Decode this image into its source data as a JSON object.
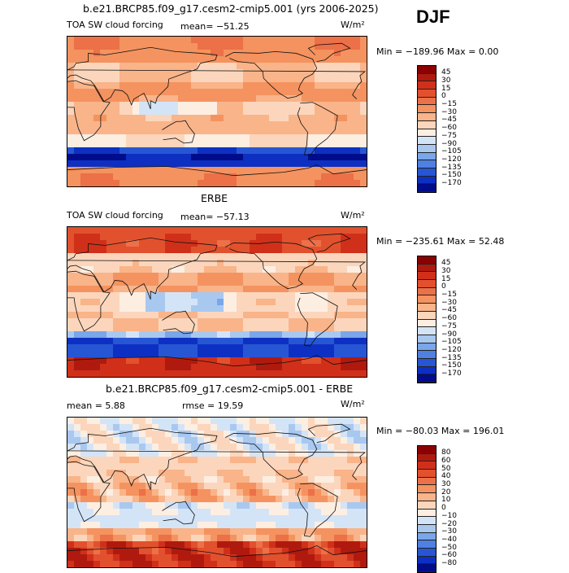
{
  "season": "DJF",
  "panels": [
    {
      "heading": "b.e21.BRCP85.f09_g17.cesm2-cmip5.001 (yrs 2006-2025)",
      "left_label": "TOA SW cloud forcing",
      "center_label": "mean= −51.25",
      "units": "W/m²",
      "minmax": "Min = −189.96 Max =    0.00"
    },
    {
      "heading": "ERBE",
      "left_label": "TOA SW cloud forcing",
      "center_label": "mean= −57.13",
      "units": "W/m²",
      "minmax": "Min = −235.61 Max =  52.48"
    },
    {
      "heading": "b.e21.BRCP85.f09_g17.cesm2-cmip5.001 - ERBE",
      "left_label": "mean =    5.88",
      "center_label": "rmse =   19.59",
      "units": "W/m²",
      "minmax": "Min = −80.03 Max = 196.01"
    }
  ],
  "chart_data": [
    {
      "type": "heatmap",
      "title": "b.e21.BRCP85.f09_g17.cesm2-cmip5.001 (yrs 2006-2025)",
      "variable": "TOA SW cloud forcing",
      "units": "W/m²",
      "mean": -51.25,
      "min": -189.96,
      "max": 0.0,
      "levels": [
        45,
        30,
        15,
        0,
        -15,
        -30,
        -45,
        -60,
        -75,
        -90,
        -105,
        -120,
        -135,
        -150,
        -170
      ],
      "level_labels": [
        "45",
        "30",
        "15",
        "0",
        "−15",
        "−30",
        "−45",
        "−60",
        "−75",
        "−90",
        "−105",
        "−120",
        "−135",
        "−150",
        "−170"
      ],
      "colors": [
        "#8b0000",
        "#b01a0e",
        "#d0301a",
        "#e2512e",
        "#ec7048",
        "#f4935f",
        "#f9b48a",
        "#fbd6bc",
        "#fdeee2",
        "#d4e4f7",
        "#a9c8f0",
        "#7aa6ea",
        "#4f80e2",
        "#2756d4",
        "#0d30c2",
        "#000c8a"
      ]
    },
    {
      "type": "heatmap",
      "title": "ERBE",
      "variable": "TOA SW cloud forcing",
      "units": "W/m²",
      "mean": -57.13,
      "min": -235.61,
      "max": 52.48,
      "levels": [
        45,
        30,
        15,
        0,
        -15,
        -30,
        -45,
        -60,
        -75,
        -90,
        -105,
        -120,
        -135,
        -150,
        -170
      ],
      "level_labels": [
        "45",
        "30",
        "15",
        "0",
        "−15",
        "−30",
        "−45",
        "−60",
        "−75",
        "−90",
        "−105",
        "−120",
        "−135",
        "−150",
        "−170"
      ],
      "colors": [
        "#8b0000",
        "#b01a0e",
        "#d0301a",
        "#e2512e",
        "#ec7048",
        "#f4935f",
        "#f9b48a",
        "#fbd6bc",
        "#fdeee2",
        "#d4e4f7",
        "#a9c8f0",
        "#7aa6ea",
        "#4f80e2",
        "#2756d4",
        "#0d30c2",
        "#000c8a"
      ]
    },
    {
      "type": "heatmap",
      "title": "b.e21.BRCP85.f09_g17.cesm2-cmip5.001 - ERBE",
      "units": "W/m²",
      "mean": 5.88,
      "rmse": 19.59,
      "min": -80.03,
      "max": 196.01,
      "levels": [
        80,
        60,
        50,
        40,
        30,
        20,
        10,
        0,
        -10,
        -20,
        -30,
        -40,
        -50,
        -60,
        -80
      ],
      "level_labels": [
        "80",
        "60",
        "50",
        "40",
        "30",
        "20",
        "10",
        "0",
        "−10",
        "−20",
        "−30",
        "−40",
        "−50",
        "−60",
        "−80"
      ],
      "colors": [
        "#8b0000",
        "#b01a0e",
        "#d0301a",
        "#e2512e",
        "#ec7048",
        "#f4935f",
        "#f9b48a",
        "#fbd6bc",
        "#fdeee2",
        "#d4e4f7",
        "#a9c8f0",
        "#7aa6ea",
        "#4f80e2",
        "#2756d4",
        "#0d30c2",
        "#000c8a"
      ]
    }
  ]
}
